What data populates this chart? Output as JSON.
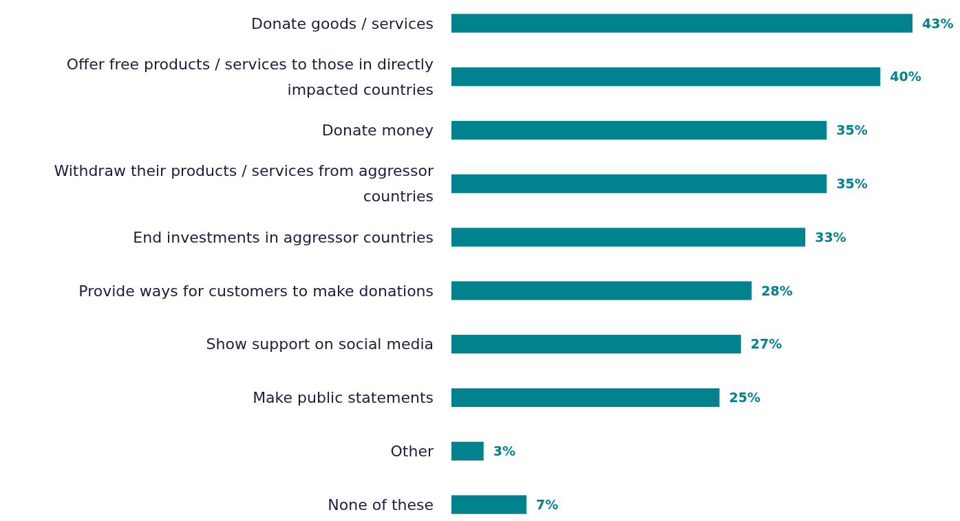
{
  "chart_data": {
    "type": "bar",
    "orientation": "horizontal",
    "color": "#00838f",
    "categories": [
      "Donate goods / services",
      "Offer free products / services to those in directly impacted countries",
      "Donate money",
      "Withdraw their products / services from aggressor countries",
      "End investments in aggressor countries",
      "Provide ways for customers to make donations",
      "Show support on social media",
      "Make public statements",
      "Other",
      "None of these"
    ],
    "values": [
      43,
      40,
      35,
      35,
      33,
      28,
      27,
      25,
      3,
      7
    ],
    "value_labels": [
      "43%",
      "40%",
      "35%",
      "35%",
      "33%",
      "28%",
      "27%",
      "25%",
      "3%",
      "7%"
    ]
  }
}
